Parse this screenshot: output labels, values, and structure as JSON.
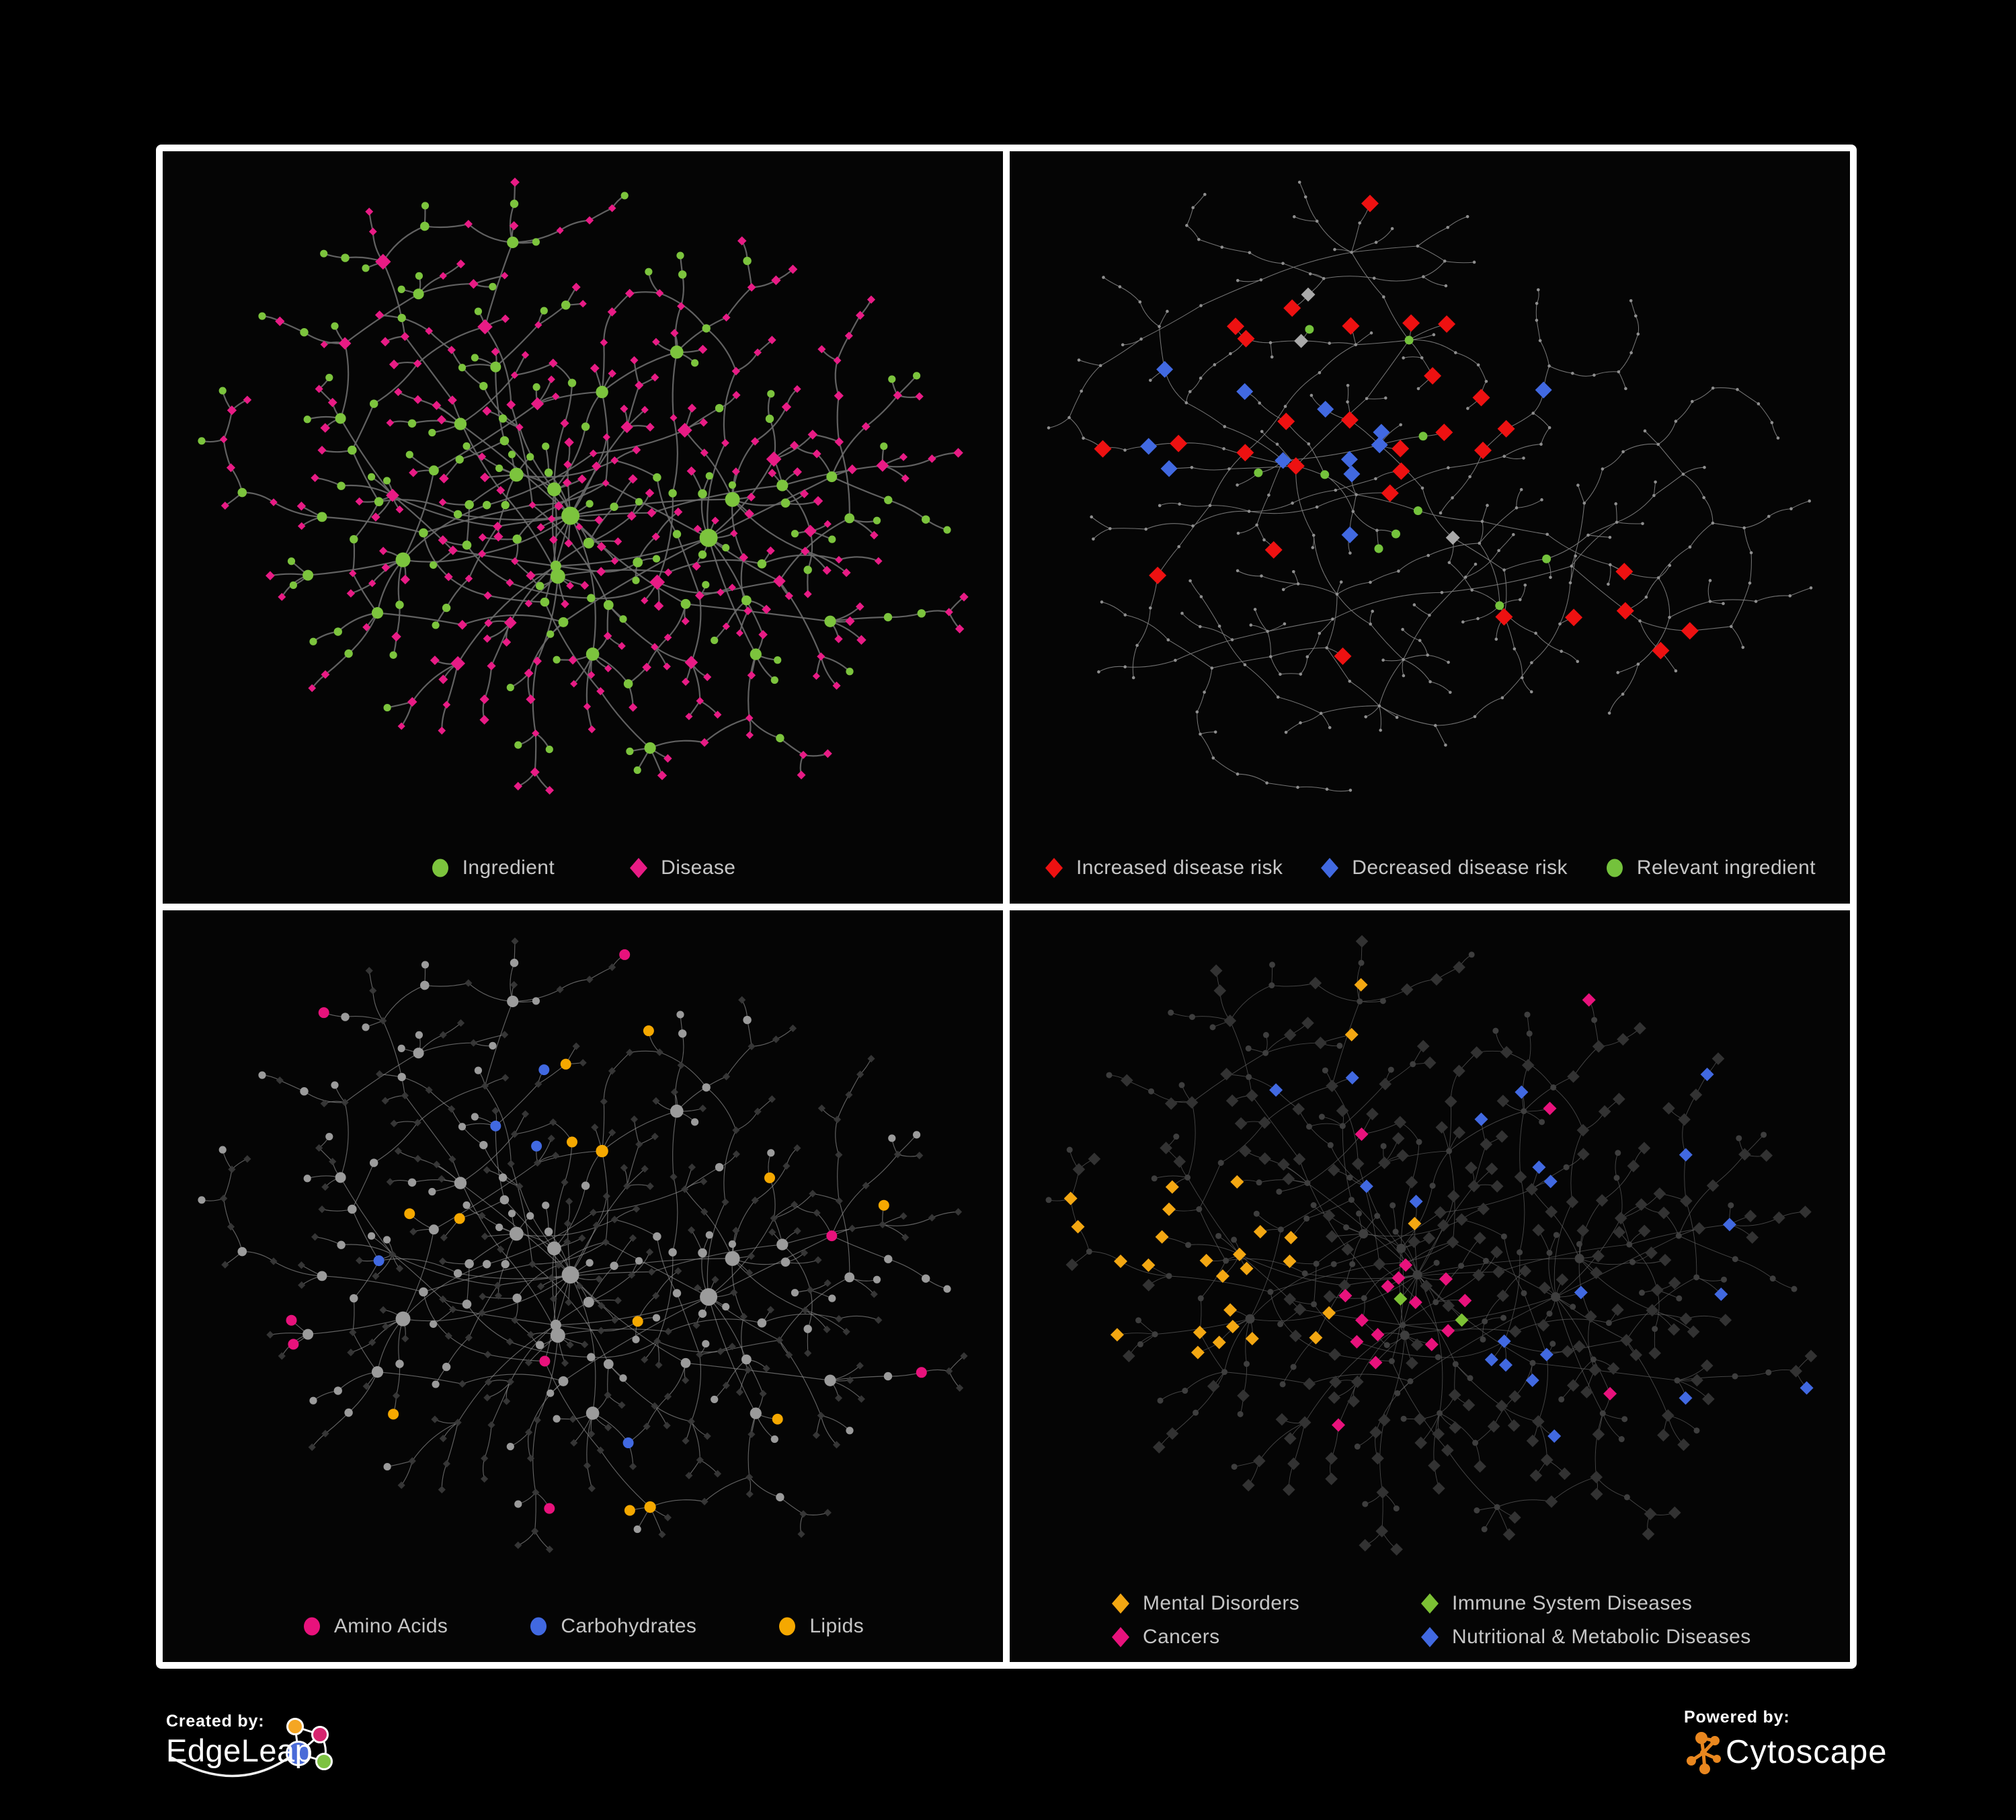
{
  "page": {
    "background": "#000000",
    "frame_color": "#ffffff",
    "panel_background": "#050505",
    "legend_text_color": "#c6c6c6"
  },
  "panels": [
    {
      "id": "ingredient-disease",
      "legend": [
        {
          "label": "Ingredient",
          "shape": "circle",
          "color": "#7cc43d"
        },
        {
          "label": "Disease",
          "shape": "diamond",
          "color": "#e81b85"
        }
      ],
      "style": {
        "edge": "#6b6b6b",
        "edge_width": 2.2,
        "ingredient": "#7cc43d",
        "disease": "#e81b85"
      }
    },
    {
      "id": "disease-risk",
      "legend": [
        {
          "label": "Increased disease risk",
          "shape": "diamond",
          "color": "#ee1111"
        },
        {
          "label": "Decreased disease risk",
          "shape": "diamond",
          "color": "#4169e1"
        },
        {
          "label": "Relevant ingredient",
          "shape": "circle",
          "color": "#74c23c"
        }
      ],
      "style": {
        "edge": "#7a7a7a",
        "edge_width": 1.05,
        "node": "#8f8f8f",
        "increased": "#ee1111",
        "decreased": "#4169e1",
        "relevant": "#74c23c",
        "neutral": "#a9a9a9"
      }
    },
    {
      "id": "nutrient-classes",
      "legend": [
        {
          "label": "Amino Acids",
          "shape": "circle",
          "color": "#e8127c"
        },
        {
          "label": "Carbohydrates",
          "shape": "circle",
          "color": "#4169e1"
        },
        {
          "label": "Lipids",
          "shape": "circle",
          "color": "#f5a800"
        }
      ],
      "style": {
        "edge": "#8d8d8d",
        "edge_width": 1.15,
        "circle": "#9b9b9b",
        "diamond": "#383838",
        "amino": "#e8127c",
        "carbo": "#4169e1",
        "lipid": "#f5a800"
      }
    },
    {
      "id": "disease-categories",
      "legend": [
        {
          "label": "Mental Disorders",
          "shape": "diamond",
          "color": "#f3a712"
        },
        {
          "label": "Immune System Diseases",
          "shape": "diamond",
          "color": "#7cc134"
        },
        {
          "label": "Cancers",
          "shape": "diamond",
          "color": "#e8127c"
        },
        {
          "label": "Nutritional & Metabolic Diseases",
          "shape": "diamond",
          "color": "#4169e1"
        }
      ],
      "style": {
        "edge": "#5f5f5f",
        "edge_width": 0.95,
        "diamond": "#323232",
        "dot": "#3e3e3e",
        "mental": "#f3a712",
        "immune": "#7cc134",
        "cancers": "#e8127c",
        "nutritional": "#4169e1"
      }
    }
  ],
  "network": {
    "graphA": {
      "seed": 41,
      "nodes": 430,
      "chain_probability": 0.22,
      "extra_edges": 22,
      "iterations": 130
    },
    "graphB": {
      "seed": 97,
      "nodes": 340,
      "chain_probability": 0.48,
      "extra_edges": 10,
      "iterations": 130
    },
    "type_seed": 77,
    "highlight_seeds": {
      "risk": 5,
      "nutrient": 11,
      "category": 23
    }
  },
  "footer": {
    "created_by": "Created by:",
    "edgeleap": "EdgeLeap",
    "powered_by": "Powered by:",
    "cytoscape": "Cytoscape",
    "cytoscape_orange": "#e9871f",
    "edgeleap_logo": {
      "orange": "#f5a623",
      "pink": "#d6246e",
      "blue": "#4a6bd8",
      "green": "#7dc242",
      "stroke": "#ffffff"
    }
  }
}
